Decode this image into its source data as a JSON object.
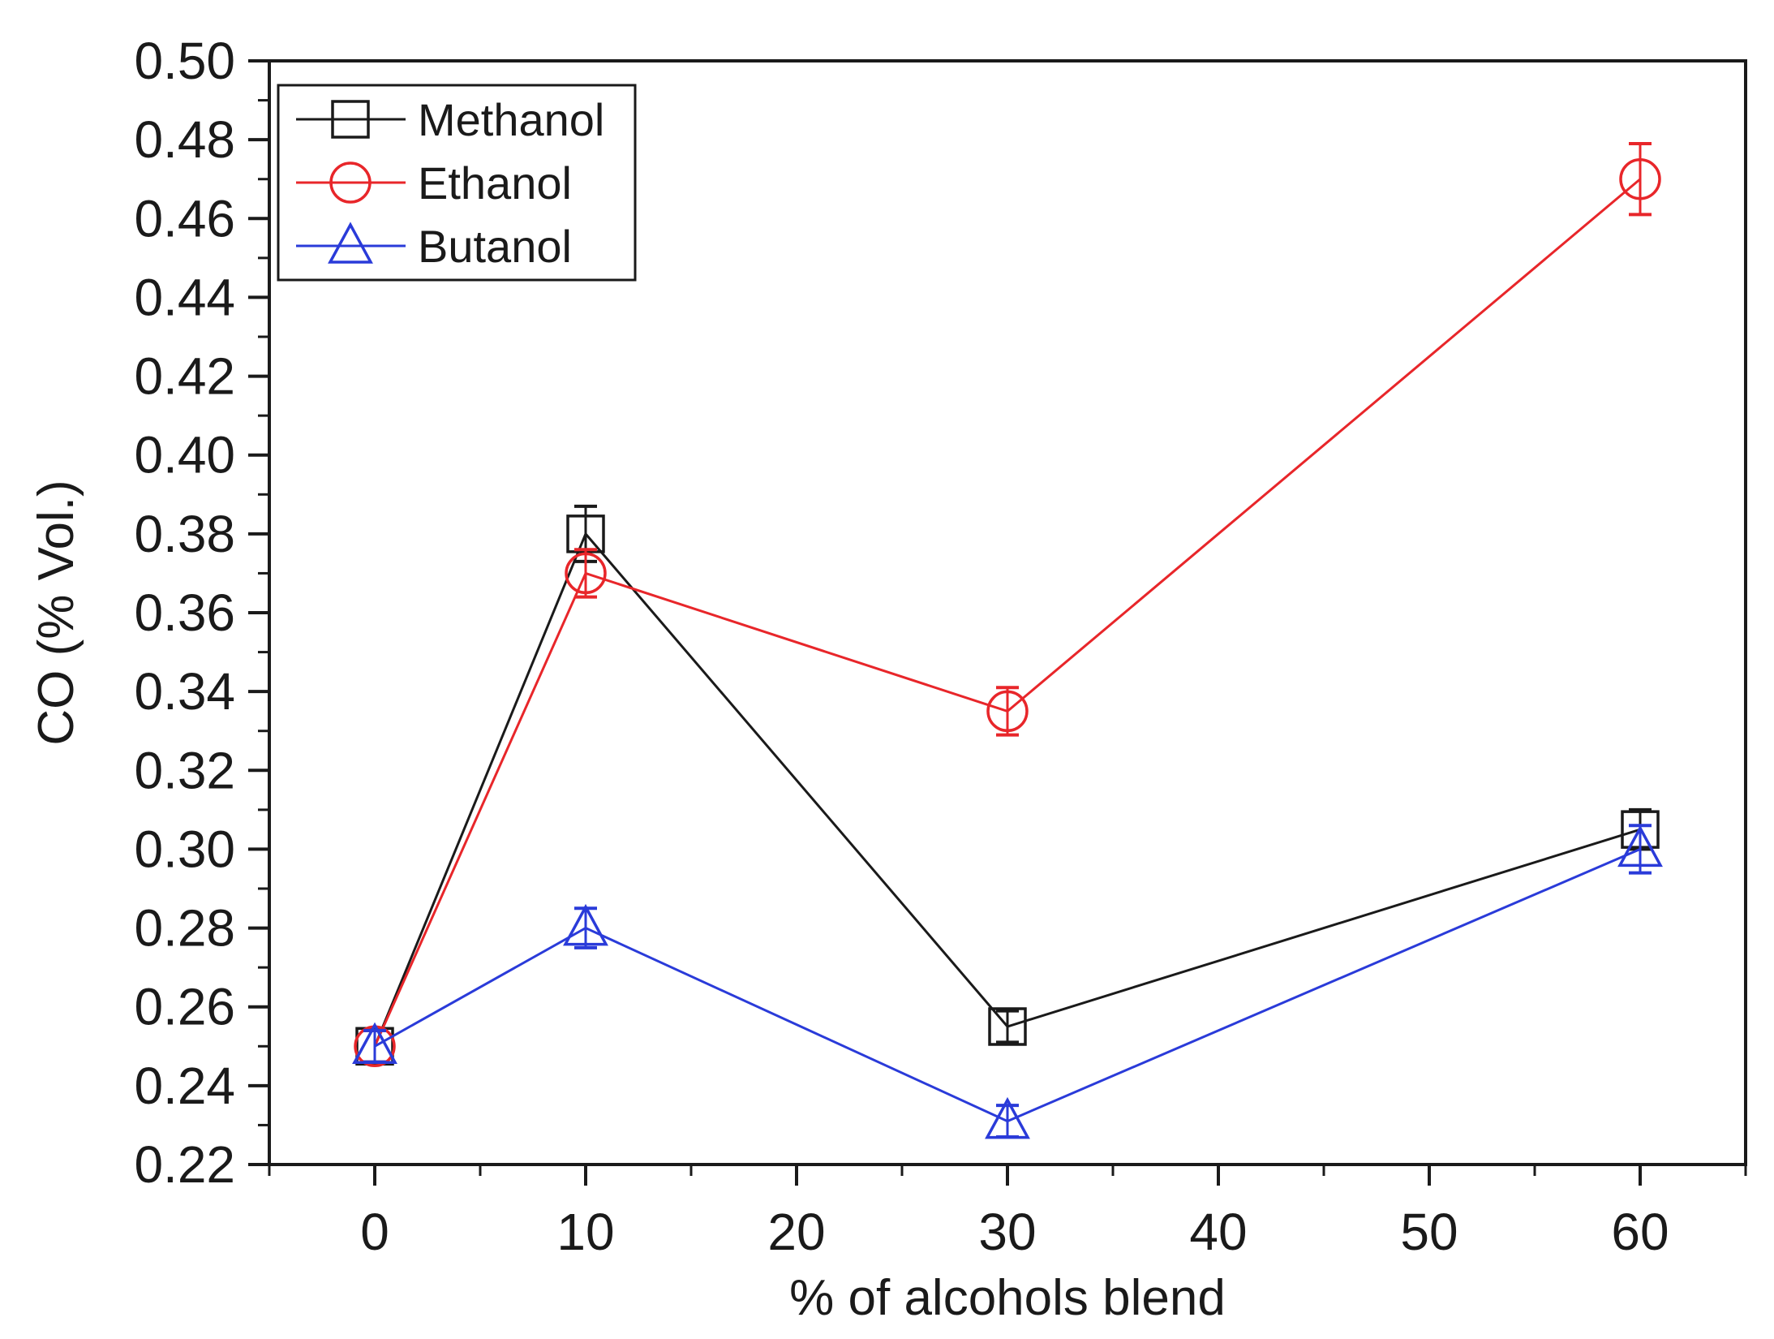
{
  "chart_data": {
    "type": "line",
    "title": "",
    "xlabel": "% of alcohols blend",
    "ylabel": "CO (% Vol.)",
    "xlim": [
      -5,
      65
    ],
    "ylim": [
      0.22,
      0.5
    ],
    "x_ticks": [
      0,
      10,
      20,
      30,
      40,
      50,
      60
    ],
    "x_tick_labels": [
      "0",
      "10",
      "20",
      "30",
      "40",
      "50",
      "60"
    ],
    "y_ticks": [
      0.22,
      0.24,
      0.26,
      0.28,
      0.3,
      0.32,
      0.34,
      0.36,
      0.38,
      0.4,
      0.42,
      0.44,
      0.46,
      0.48,
      0.5
    ],
    "y_tick_labels": [
      "0.22",
      "0.24",
      "0.26",
      "0.28",
      "0.30",
      "0.32",
      "0.34",
      "0.36",
      "0.38",
      "0.40",
      "0.42",
      "0.44",
      "0.46",
      "0.48",
      "0.50"
    ],
    "grid": false,
    "legend_position": "top-left",
    "x": [
      0,
      10,
      30,
      60
    ],
    "series": [
      {
        "name": "Methanol",
        "color": "#1a1a1a",
        "marker": "square",
        "values": [
          0.25,
          0.38,
          0.255,
          0.305
        ],
        "errors": [
          0.004,
          0.007,
          0.004,
          0.005
        ]
      },
      {
        "name": "Ethanol",
        "color": "#e8262a",
        "marker": "circle",
        "values": [
          0.25,
          0.37,
          0.335,
          0.47
        ],
        "errors": [
          0.004,
          0.006,
          0.006,
          0.009
        ]
      },
      {
        "name": "Butanol",
        "color": "#2a3bd9",
        "marker": "triangle",
        "values": [
          0.25,
          0.28,
          0.231,
          0.3
        ],
        "errors": [
          0.004,
          0.005,
          0.004,
          0.006
        ]
      }
    ]
  }
}
